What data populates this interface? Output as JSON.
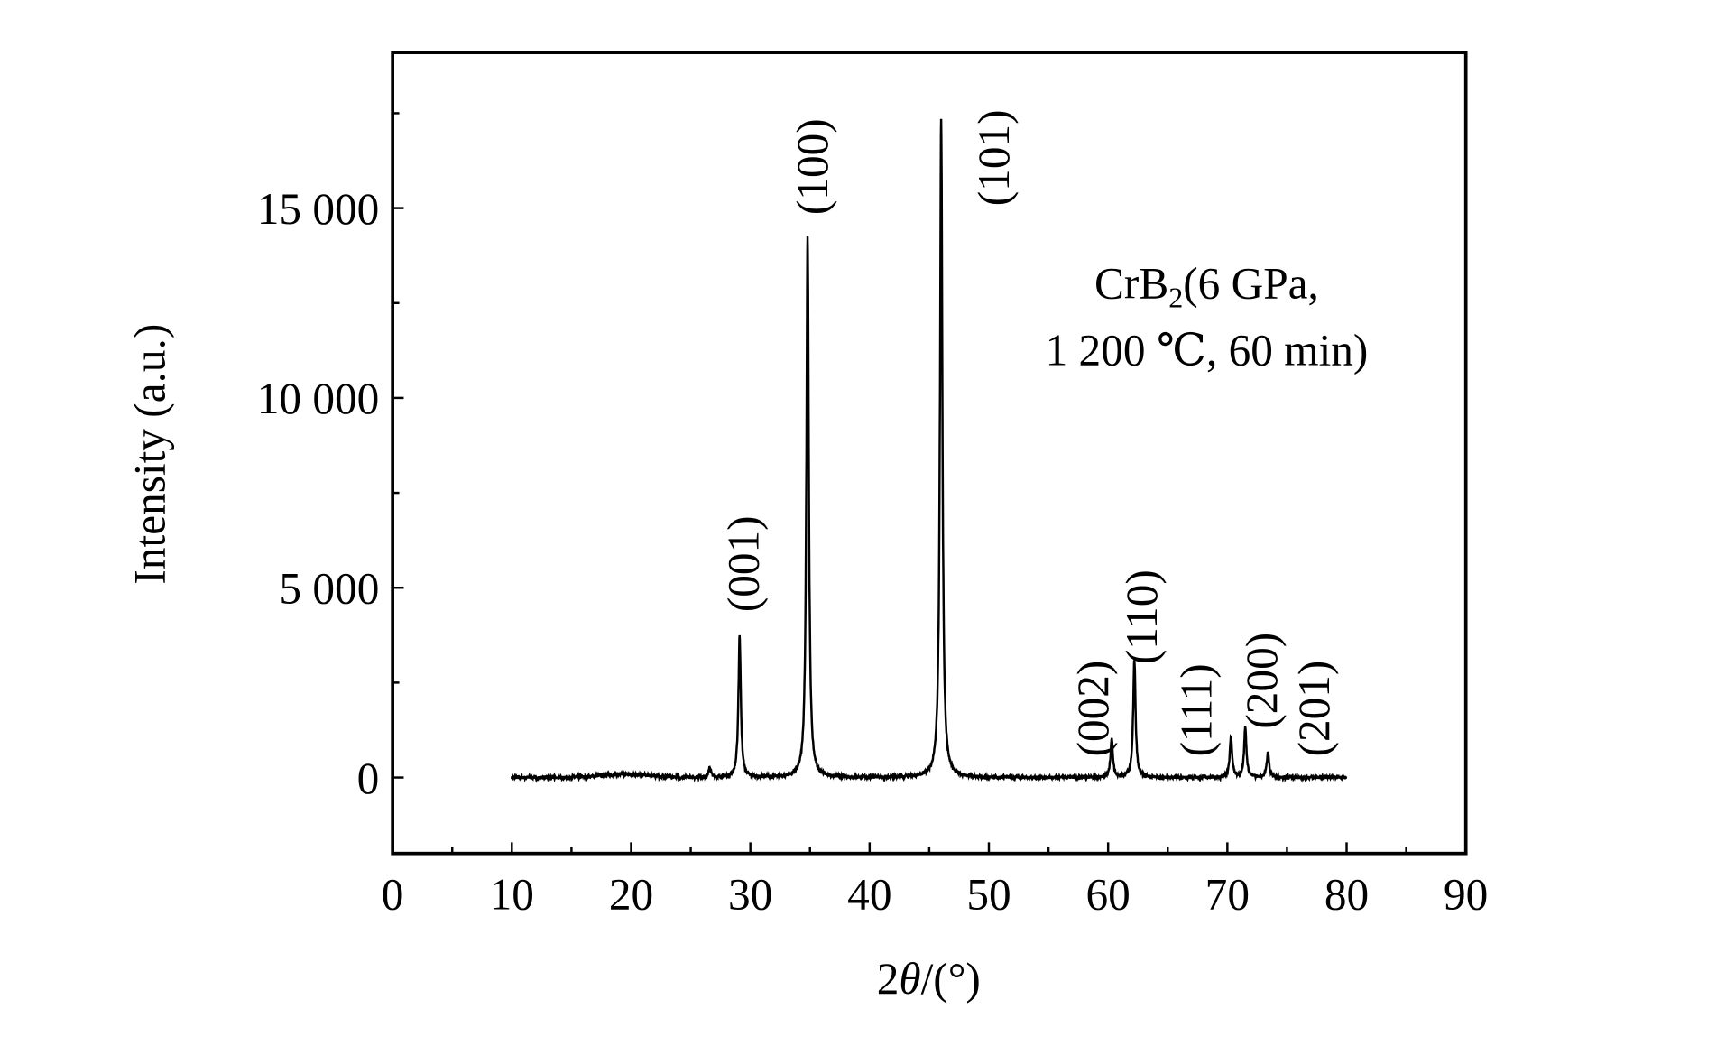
{
  "chart_data": {
    "type": "line",
    "xlabel_prefix": "2",
    "xlabel_symbol": "θ",
    "xlabel_suffix": "/(°)",
    "ylabel": "Intensity  (a.u.)",
    "xlim": [
      0,
      90
    ],
    "ylim": [
      -2000,
      19100
    ],
    "xticks": [
      0,
      10,
      20,
      30,
      40,
      50,
      60,
      70,
      80,
      90
    ],
    "xtick_labels": [
      "0",
      "10",
      "20",
      "30",
      "40",
      "50",
      "60",
      "70",
      "80",
      "90"
    ],
    "yticks": [
      0,
      5000,
      10000,
      15000
    ],
    "ytick_labels": [
      "0",
      "5 000",
      "10 000",
      "15 000"
    ],
    "x_range": [
      10,
      80
    ],
    "grid": false,
    "line_color": "#000000",
    "annotation": {
      "line1_main": "CrB",
      "line1_sub": "2",
      "line1_rest": "(6 GPa,",
      "line2": "1 200 ℃, 60 min)"
    },
    "peaks": [
      {
        "x": 26.6,
        "y": 250,
        "label": ""
      },
      {
        "x": 29.1,
        "y": 3750,
        "label": "(001)"
      },
      {
        "x": 34.8,
        "y": 14250,
        "label": "(100)"
      },
      {
        "x": 46.0,
        "y": 17350,
        "label": "(101)"
      },
      {
        "x": 60.3,
        "y": 1000,
        "label": "(002)"
      },
      {
        "x": 62.2,
        "y": 3100,
        "label": "(110)"
      },
      {
        "x": 66.5,
        "y": 0,
        "label": "(111)"
      },
      {
        "x": 70.3,
        "y": 1050,
        "label": "(200)"
      },
      {
        "x": 71.5,
        "y": 1300,
        "label": ""
      },
      {
        "x": 73.4,
        "y": 650,
        "label": "(201)"
      }
    ]
  }
}
